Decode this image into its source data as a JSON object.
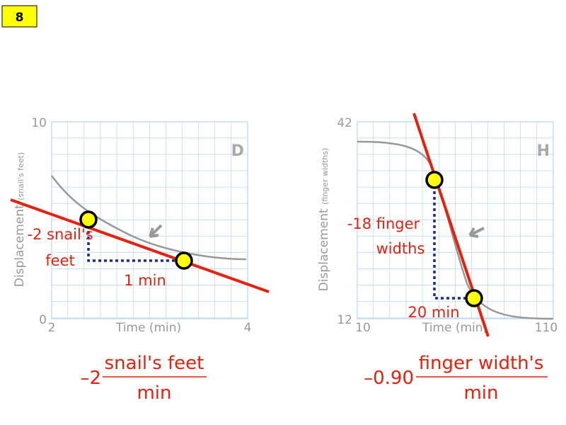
{
  "badge": "8",
  "panels": [
    {
      "letter": "D",
      "y_axis_title": "Displacement",
      "y_axis_unit": "(snail's feet)",
      "x_axis_title": "Time (min)",
      "y_ticks": [
        "10",
        "0"
      ],
      "x_ticks": [
        "2",
        "4"
      ],
      "rise": [
        "-2 snail's",
        "feet"
      ],
      "run": "1 min",
      "rate": {
        "coefficient": "–2",
        "numerator": "snail's feet",
        "denominator": "min"
      }
    },
    {
      "letter": "H",
      "y_axis_title": "Displacement",
      "y_axis_unit": "(finger widths)",
      "x_axis_title": "Time (min)",
      "y_ticks": [
        "42",
        "12"
      ],
      "x_ticks": [
        "10",
        "110"
      ],
      "rise": [
        "-18 finger",
        "widths"
      ],
      "run": "20 min",
      "rate": {
        "coefficient": "–0.90",
        "numerator": "finger width's",
        "denominator": "min"
      }
    }
  ]
}
